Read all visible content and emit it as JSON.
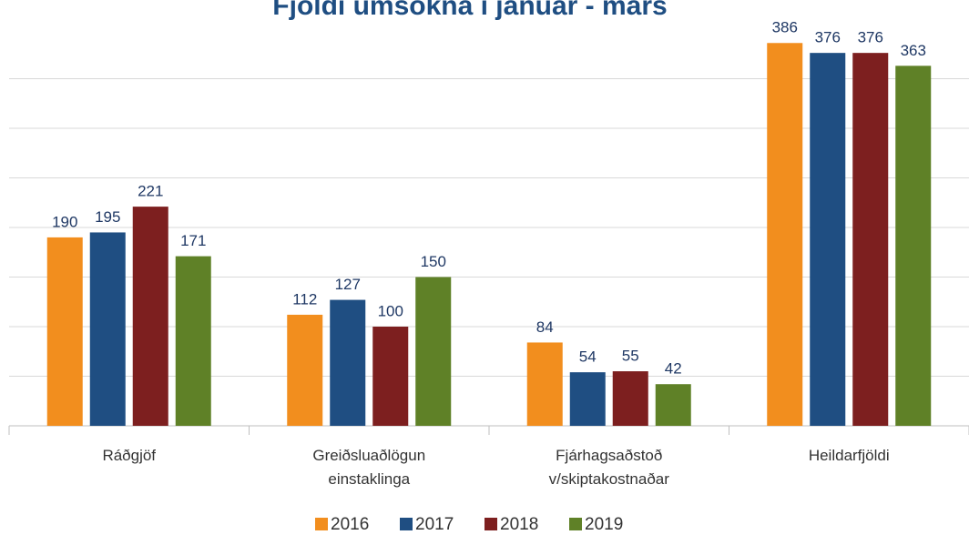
{
  "chart_data": {
    "type": "bar",
    "title": "Fjöldi umsókna í janúar - mars",
    "categories": [
      "Ráðgjöf",
      "Greiðsluaðlögun\neinstaklinga",
      "Fjárhagsaðstoð\nv/skiptakostnaðar",
      "Heildarfjöldi"
    ],
    "series": [
      {
        "name": "2016",
        "color": "#f28e1e",
        "values": [
          190,
          112,
          84,
          386
        ]
      },
      {
        "name": "2017",
        "color": "#1f4e82",
        "values": [
          195,
          127,
          54,
          376
        ]
      },
      {
        "name": "2018",
        "color": "#7d1f1f",
        "values": [
          221,
          100,
          55,
          376
        ]
      },
      {
        "name": "2019",
        "color": "#5f8127",
        "values": [
          171,
          150,
          42,
          363
        ]
      }
    ],
    "ylim": [
      0,
      400
    ],
    "yticks": [
      0,
      50,
      100,
      150,
      200,
      250,
      300,
      350
    ],
    "grid": true,
    "legend": "bottom"
  }
}
